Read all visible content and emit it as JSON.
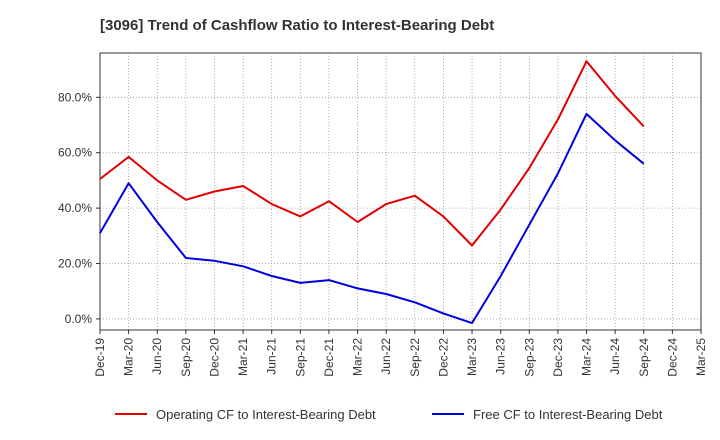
{
  "chart_data": {
    "type": "line",
    "title": "[3096]  Trend of Cashflow Ratio to Interest-Bearing Debt",
    "xlabel": "",
    "ylabel": "",
    "x": [
      "Dec-19",
      "Mar-20",
      "Jun-20",
      "Sep-20",
      "Dec-20",
      "Mar-21",
      "Jun-21",
      "Sep-21",
      "Dec-21",
      "Mar-22",
      "Jun-22",
      "Sep-22",
      "Dec-22",
      "Mar-23",
      "Jun-23",
      "Sep-23",
      "Dec-23",
      "Mar-24",
      "Jun-24",
      "Sep-24",
      "Dec-24",
      "Mar-25"
    ],
    "ylim": [
      -4,
      96
    ],
    "yticks": [
      0,
      20,
      40,
      60,
      80
    ],
    "ytick_labels": [
      "0.0%",
      "20.0%",
      "40.0%",
      "60.0%",
      "80.0%"
    ],
    "grid": true,
    "legend_position": "bottom",
    "series": [
      {
        "name": "Operating CF to Interest-Bearing Debt",
        "color": "#e00000",
        "values": [
          50.5,
          58.5,
          50,
          43,
          46,
          48,
          41.5,
          37,
          42.5,
          35,
          41.5,
          44.5,
          37,
          26.5,
          39.5,
          54.5,
          72,
          93,
          80.5,
          69.5,
          null,
          null
        ]
      },
      {
        "name": "Free CF to Interest-Bearing Debt",
        "color": "#0000e0",
        "values": [
          31,
          49,
          35,
          22,
          21,
          19,
          15.5,
          13,
          14,
          11,
          9,
          6,
          2,
          -1.5,
          15.5,
          34,
          52.5,
          74,
          64.5,
          56,
          null,
          null
        ]
      }
    ]
  }
}
